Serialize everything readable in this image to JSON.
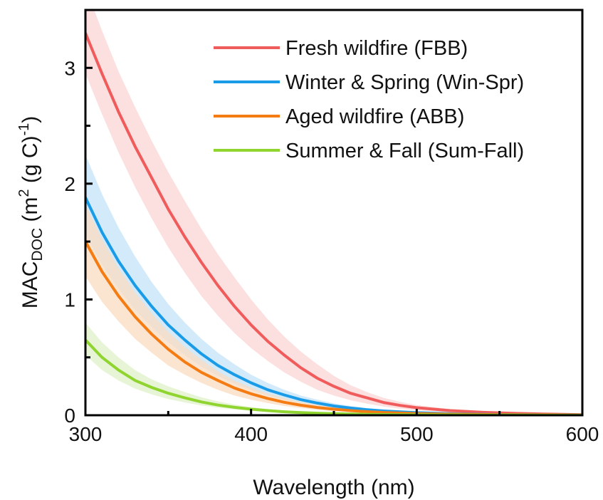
{
  "chart_data": {
    "type": "line",
    "xlabel": "Wavelength (nm)",
    "ylabel": {
      "base": "MAC",
      "subscript": "DOC",
      "units_open": " (m",
      "units_sup": "2",
      "units_mid": " (g C)",
      "units_sup2": "-1",
      "units_close": ")"
    },
    "xlim": [
      300,
      600
    ],
    "ylim": [
      0,
      3.5
    ],
    "x_ticks": [
      300,
      400,
      500,
      600
    ],
    "x_tick_labels": [
      "300",
      "400",
      "500",
      "600"
    ],
    "y_ticks": [
      0,
      1,
      2,
      3
    ],
    "y_tick_labels": [
      "0",
      "1",
      "2",
      "3"
    ],
    "legend_position": "top-right",
    "grid": false,
    "x": [
      300,
      310,
      320,
      330,
      340,
      350,
      360,
      370,
      380,
      390,
      400,
      410,
      420,
      430,
      440,
      450,
      460,
      470,
      480,
      490,
      500,
      520,
      540,
      560,
      580,
      600
    ],
    "series": [
      {
        "name": "Fresh wildfire (FBB)",
        "color": "#f05c5c",
        "band_color": "#fbd4d4",
        "values": [
          3.3,
          2.95,
          2.62,
          2.32,
          2.05,
          1.78,
          1.54,
          1.32,
          1.12,
          0.94,
          0.78,
          0.64,
          0.52,
          0.41,
          0.32,
          0.25,
          0.19,
          0.15,
          0.11,
          0.085,
          0.065,
          0.04,
          0.025,
          0.016,
          0.01,
          0.005
        ],
        "lower": [
          2.95,
          2.6,
          2.27,
          1.97,
          1.7,
          1.45,
          1.23,
          1.03,
          0.86,
          0.71,
          0.58,
          0.47,
          0.37,
          0.29,
          0.22,
          0.17,
          0.13,
          0.1,
          0.075,
          0.057,
          0.043,
          0.026,
          0.016,
          0.01,
          0.006,
          0.003
        ],
        "upper": [
          3.7,
          3.32,
          2.97,
          2.66,
          2.37,
          2.1,
          1.85,
          1.61,
          1.39,
          1.19,
          1.0,
          0.83,
          0.68,
          0.55,
          0.44,
          0.34,
          0.26,
          0.2,
          0.15,
          0.115,
          0.088,
          0.055,
          0.035,
          0.022,
          0.014,
          0.008
        ]
      },
      {
        "name": "Winter & Spring (Win-Spr)",
        "color": "#1a9be8",
        "band_color": "#c3e3f8",
        "values": [
          1.88,
          1.58,
          1.33,
          1.12,
          0.94,
          0.78,
          0.65,
          0.53,
          0.43,
          0.35,
          0.28,
          0.22,
          0.175,
          0.135,
          0.105,
          0.08,
          0.062,
          0.048,
          0.037,
          0.029,
          0.022,
          0.013,
          0.008,
          0.005,
          0.003,
          0.002
        ],
        "lower": [
          1.56,
          1.3,
          1.09,
          0.91,
          0.76,
          0.63,
          0.52,
          0.42,
          0.34,
          0.27,
          0.22,
          0.17,
          0.135,
          0.105,
          0.08,
          0.062,
          0.047,
          0.036,
          0.028,
          0.021,
          0.016,
          0.009,
          0.006,
          0.003,
          0.002,
          0.001
        ],
        "upper": [
          2.25,
          1.91,
          1.62,
          1.37,
          1.15,
          0.96,
          0.8,
          0.66,
          0.54,
          0.44,
          0.35,
          0.28,
          0.22,
          0.17,
          0.135,
          0.103,
          0.08,
          0.062,
          0.048,
          0.037,
          0.028,
          0.017,
          0.01,
          0.006,
          0.004,
          0.003
        ]
      },
      {
        "name": "Aged wildfire (ABB)",
        "color": "#f57c12",
        "band_color": "#fbdcc0",
        "values": [
          1.5,
          1.24,
          1.03,
          0.85,
          0.7,
          0.57,
          0.46,
          0.37,
          0.3,
          0.235,
          0.185,
          0.145,
          0.112,
          0.087,
          0.067,
          0.052,
          0.04,
          0.031,
          0.024,
          0.019,
          0.015,
          0.009,
          0.006,
          0.004,
          0.003,
          0.002
        ],
        "lower": [
          1.2,
          0.98,
          0.81,
          0.66,
          0.54,
          0.43,
          0.35,
          0.28,
          0.22,
          0.17,
          0.135,
          0.105,
          0.08,
          0.062,
          0.047,
          0.036,
          0.028,
          0.021,
          0.016,
          0.012,
          0.01,
          0.006,
          0.004,
          0.002,
          0.002,
          0.001
        ],
        "upper": [
          1.82,
          1.52,
          1.27,
          1.06,
          0.88,
          0.72,
          0.59,
          0.48,
          0.38,
          0.3,
          0.24,
          0.19,
          0.148,
          0.115,
          0.09,
          0.07,
          0.054,
          0.042,
          0.033,
          0.026,
          0.02,
          0.012,
          0.008,
          0.005,
          0.004,
          0.003
        ]
      },
      {
        "name": "Summer & Fall (Sum-Fall)",
        "color": "#8fd42f",
        "band_color": "#dff2c8",
        "values": [
          0.65,
          0.5,
          0.39,
          0.3,
          0.24,
          0.19,
          0.15,
          0.115,
          0.088,
          0.068,
          0.052,
          0.04,
          0.03,
          0.023,
          0.018,
          0.014,
          0.011,
          0.008,
          0.006,
          0.005,
          0.004,
          0.003,
          0.002,
          0.001,
          0.001,
          0.0
        ],
        "lower": [
          0.52,
          0.39,
          0.3,
          0.23,
          0.18,
          0.14,
          0.11,
          0.085,
          0.065,
          0.05,
          0.038,
          0.029,
          0.022,
          0.017,
          0.013,
          0.01,
          0.008,
          0.006,
          0.004,
          0.003,
          0.002,
          0.002,
          0.001,
          0.0,
          0.0,
          0.0
        ],
        "upper": [
          0.8,
          0.63,
          0.5,
          0.39,
          0.31,
          0.25,
          0.2,
          0.155,
          0.12,
          0.092,
          0.07,
          0.054,
          0.041,
          0.032,
          0.025,
          0.019,
          0.015,
          0.011,
          0.009,
          0.007,
          0.006,
          0.004,
          0.003,
          0.002,
          0.001,
          0.001
        ]
      }
    ]
  }
}
